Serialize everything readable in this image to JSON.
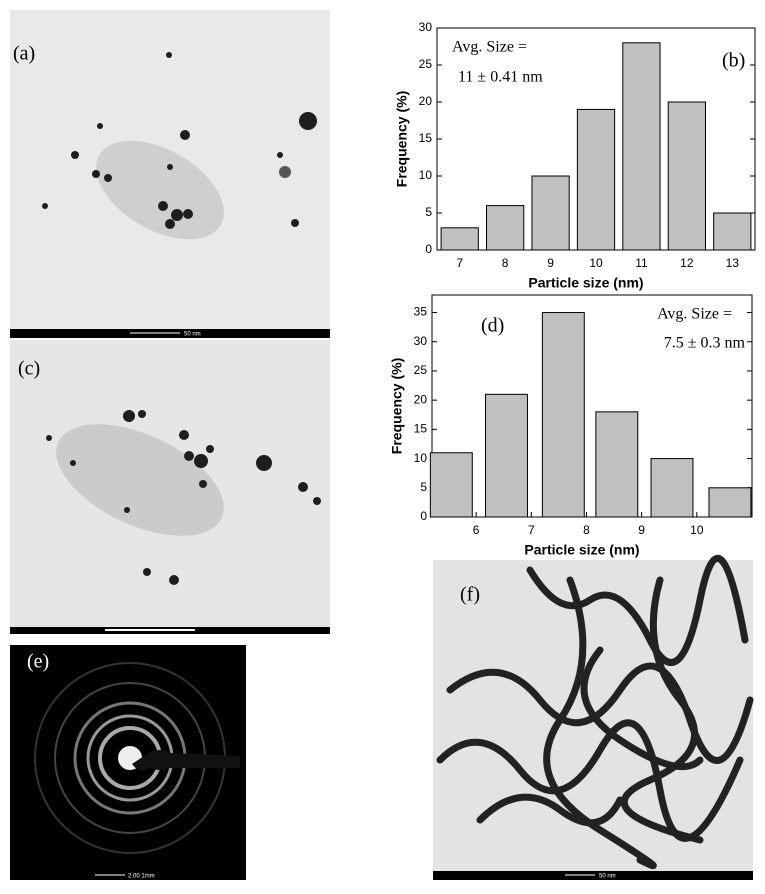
{
  "images": [
    {
      "label": "(a)",
      "scale": "50 nm"
    },
    {
      "label": "(c)"
    },
    {
      "label": "(e)",
      "scale": "2.00 1/nm"
    },
    {
      "label": "(f)",
      "scale": "50 nm"
    }
  ],
  "chart_data": [
    {
      "type": "bar",
      "panel": "(b)",
      "annotations": [
        "Avg. Size =",
        "11 ± 0.41 nm"
      ],
      "x_label": "Particle size (nm)",
      "y_label": "Frequency (%)",
      "categories": [
        "7",
        "8",
        "9",
        "10",
        "11",
        "12",
        "13"
      ],
      "values": [
        3,
        6,
        10,
        19,
        28,
        20,
        5
      ],
      "color": "#c0c0c0",
      "ylim": [
        0,
        30
      ],
      "yticks": [
        0,
        5,
        10,
        15,
        20,
        25,
        30
      ]
    },
    {
      "type": "histogram",
      "panel": "(d)",
      "annotations": [
        "Avg. Size =",
        "7.5 ± 0.3 nm"
      ],
      "x_label": "Particle size (nm)",
      "y_label": "Frequency (%)",
      "x": [
        5.55,
        6.55,
        7.58,
        8.55,
        9.55,
        10.6
      ],
      "values": [
        11,
        21,
        35,
        18,
        10,
        5
      ],
      "color": "#c0c0c0",
      "xlim": [
        5.2,
        11
      ],
      "xticks": [
        6,
        7,
        8,
        9,
        10
      ],
      "ylim": [
        0,
        38
      ],
      "yticks": [
        0,
        5,
        10,
        15,
        20,
        25,
        30,
        35
      ]
    }
  ]
}
